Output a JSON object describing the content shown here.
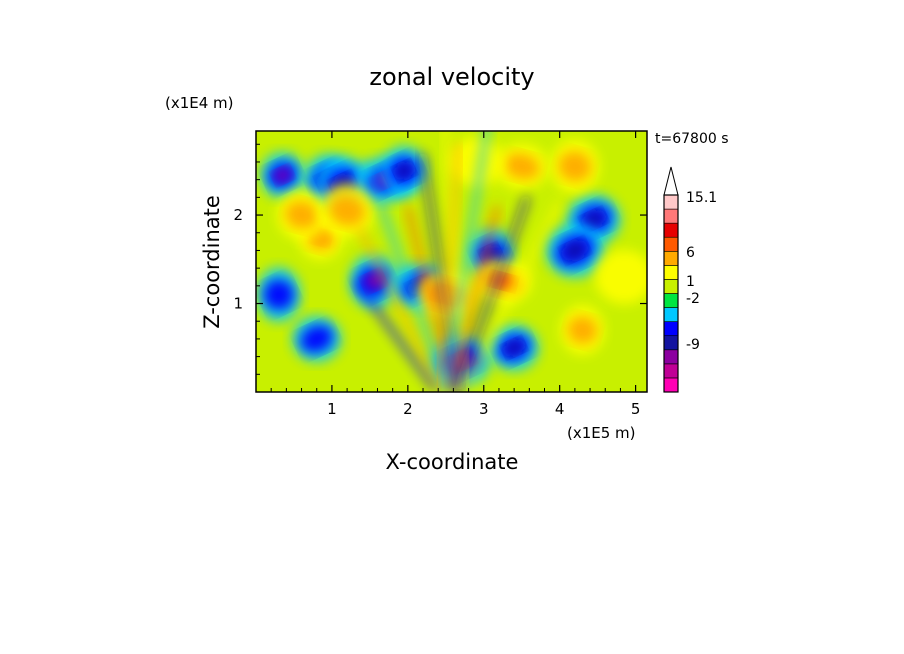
{
  "chart_data": {
    "type": "heatmap",
    "title": "zonal velocity",
    "xlabel": "X-coordinate",
    "ylabel": "Z-coordinate",
    "x_unit": "(x1E5 m)",
    "y_unit": "(x1E4 m)",
    "time_label": "t=67800 s",
    "x_ticks": [
      "1",
      "2",
      "3",
      "4",
      "5"
    ],
    "y_ticks": [
      "1",
      "2"
    ],
    "xlim": [
      0,
      5.15
    ],
    "ylim": [
      0,
      2.95
    ],
    "colorbar": {
      "labels": [
        "15.1",
        "6",
        "1",
        "-2",
        "-9"
      ],
      "levels": [
        -15,
        -12,
        -9,
        -6,
        -2,
        -1,
        0,
        1,
        2,
        6,
        9,
        12,
        15.1
      ],
      "colors": [
        "#ff00b4",
        "#c00096",
        "#8c00a0",
        "#1414a0",
        "#0000ff",
        "#00c8ff",
        "#00e640",
        "#c8f000",
        "#ffff00",
        "#ffaa00",
        "#ff5a00",
        "#e60000",
        "#ff7878",
        "#ffc8c8"
      ]
    },
    "features": [
      {
        "x": 0.35,
        "z": 2.45,
        "u": -9
      },
      {
        "x": 0.95,
        "z": 2.4,
        "u": -8
      },
      {
        "x": 1.15,
        "z": 2.35,
        "u": -7
      },
      {
        "x": 1.7,
        "z": 2.4,
        "u": -9
      },
      {
        "x": 1.95,
        "z": 2.5,
        "u": -8
      },
      {
        "x": 1.55,
        "z": 1.25,
        "u": -10
      },
      {
        "x": 2.15,
        "z": 1.2,
        "u": -8
      },
      {
        "x": 2.7,
        "z": 0.35,
        "u": -9
      },
      {
        "x": 3.1,
        "z": 1.55,
        "u": -7
      },
      {
        "x": 3.4,
        "z": 0.5,
        "u": -8
      },
      {
        "x": 4.45,
        "z": 1.95,
        "u": -8
      },
      {
        "x": 4.2,
        "z": 1.6,
        "u": -6
      },
      {
        "x": 0.85,
        "z": 1.75,
        "u": 6
      },
      {
        "x": 0.6,
        "z": 2.0,
        "u": 5
      },
      {
        "x": 1.2,
        "z": 2.05,
        "u": 4
      },
      {
        "x": 3.25,
        "z": 1.25,
        "u": 7
      },
      {
        "x": 4.3,
        "z": 0.7,
        "u": 5
      },
      {
        "x": 4.2,
        "z": 2.55,
        "u": 5
      },
      {
        "x": 3.5,
        "z": 2.55,
        "u": 4
      },
      {
        "x": 2.5,
        "z": 1.1,
        "u": 6
      },
      {
        "x": 0.3,
        "z": 1.1,
        "u": -2
      },
      {
        "x": 0.8,
        "z": 0.6,
        "u": -2
      },
      {
        "x": 2.9,
        "z": 2.6,
        "u": 0
      },
      {
        "x": 4.85,
        "z": 1.3,
        "u": 0
      }
    ]
  }
}
